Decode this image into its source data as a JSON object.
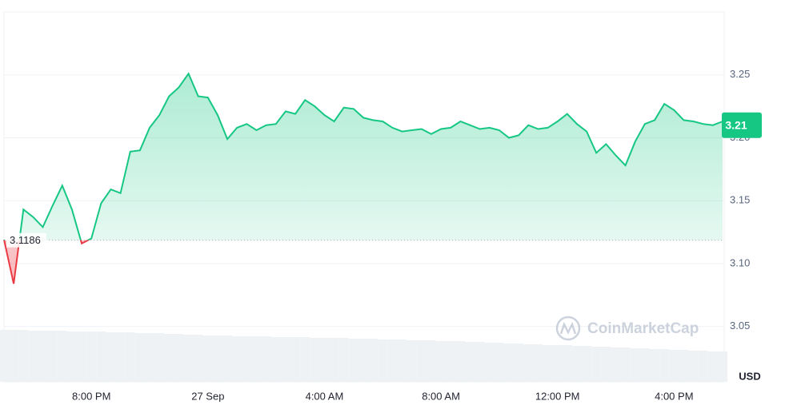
{
  "chart_data": {
    "type": "line",
    "categories": [
      null,
      null,
      null,
      null,
      null,
      null,
      null,
      null,
      null,
      "8:00 PM",
      null,
      null,
      null,
      null,
      null,
      null,
      null,
      null,
      null,
      null,
      null,
      "27 Sep",
      null,
      null,
      null,
      null,
      null,
      null,
      null,
      null,
      null,
      null,
      null,
      "4:00 AM",
      null,
      null,
      null,
      null,
      null,
      null,
      null,
      null,
      null,
      null,
      null,
      "8:00 AM",
      null,
      null,
      null,
      null,
      null,
      null,
      null,
      null,
      null,
      null,
      null,
      "12:00 PM",
      null,
      null,
      null,
      null,
      null,
      null,
      null,
      null,
      null,
      null,
      null,
      "4:00 PM",
      null,
      null,
      null,
      null,
      null
    ],
    "values": [
      3.119,
      3.084,
      3.143,
      3.137,
      3.129,
      3.146,
      3.162,
      3.143,
      3.116,
      3.12,
      3.148,
      3.159,
      3.156,
      3.189,
      3.19,
      3.208,
      3.218,
      3.233,
      3.24,
      3.251,
      3.233,
      3.232,
      3.218,
      3.199,
      3.208,
      3.211,
      3.206,
      3.21,
      3.211,
      3.221,
      3.219,
      3.23,
      3.225,
      3.218,
      3.213,
      3.224,
      3.223,
      3.216,
      3.214,
      3.213,
      3.208,
      3.205,
      3.206,
      3.207,
      3.203,
      3.207,
      3.208,
      3.213,
      3.21,
      3.207,
      3.208,
      3.206,
      3.2,
      3.202,
      3.21,
      3.207,
      3.208,
      3.213,
      3.219,
      3.211,
      3.205,
      3.188,
      3.195,
      3.186,
      3.178,
      3.197,
      3.211,
      3.214,
      3.227,
      3.222,
      3.214,
      3.213,
      3.211,
      3.21,
      3.213
    ],
    "volume": [
      65,
      65,
      65,
      64,
      64,
      64,
      64,
      63,
      63,
      63,
      63,
      62,
      62,
      62,
      61,
      61,
      61,
      60,
      60,
      59,
      59,
      58,
      58,
      58,
      57,
      57,
      57,
      57,
      56,
      56,
      56,
      56,
      55,
      55,
      55,
      55,
      54,
      54,
      54,
      53,
      53,
      53,
      52,
      52,
      52,
      51,
      51,
      51,
      50,
      50,
      49,
      49,
      48,
      48,
      47,
      47,
      46,
      46,
      46,
      45,
      45,
      44,
      44,
      43,
      43,
      42,
      42,
      41,
      41,
      40,
      40,
      39,
      39,
      38,
      38
    ],
    "up_color": "#16c784",
    "down_color": "#ea3943",
    "baseline": 3.1186,
    "current_price": 3.21,
    "ylim": [
      3.006,
      3.3
    ],
    "yticks": [
      3.05,
      {
        "value": 3.1,
        "label": "3.10"
      },
      3.15,
      {
        "value": 3.2,
        "label": "3.20"
      },
      3.25
    ],
    "y_unit": "USD",
    "grid": true,
    "watermark": "CoinMarketCap"
  }
}
